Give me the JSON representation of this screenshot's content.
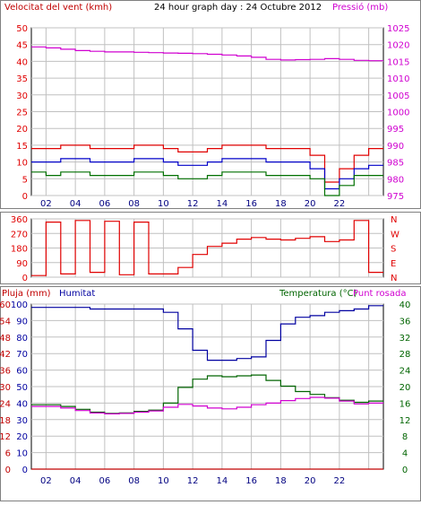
{
  "colors": {
    "wind_gust": "#e00000",
    "wind_avg": "#0000c8",
    "wind_min": "#007000",
    "pressure": "#d000d0",
    "direction": "#e00000",
    "humidity": "#0000a0",
    "temperature": "#006400",
    "dewpoint": "#d000d0",
    "rain": "#c00000",
    "grid": "#c0c0c0",
    "frame": "#808080"
  },
  "header": {
    "wind_label": "Velocitat del vent (kmh)",
    "title": "24 hour graph day : 24 Octubre 2012",
    "pressure_label": "Pressió (mb)"
  },
  "bottom_header": {
    "rain_label": "Pluja (mm)",
    "humidity_label": "Humitat",
    "temp_label": "Temperatura (°C)",
    "dew_label": "Punt rosada"
  },
  "chart_data": [
    {
      "type": "line",
      "name": "wind_pressure",
      "x": [
        0,
        1,
        2,
        3,
        4,
        5,
        6,
        7,
        8,
        9,
        10,
        11,
        12,
        13,
        14,
        15,
        16,
        17,
        18,
        19,
        20,
        21,
        22,
        23
      ],
      "x_ticks": [
        "02",
        "04",
        "06",
        "08",
        "10",
        "12",
        "14",
        "16",
        "18",
        "20",
        "22"
      ],
      "ylim_left": [
        0,
        50
      ],
      "yticks_left": [
        0,
        5,
        10,
        15,
        20,
        25,
        30,
        35,
        40,
        45,
        50
      ],
      "ylim_right": [
        975,
        1025
      ],
      "yticks_right": [
        975,
        980,
        985,
        990,
        995,
        1000,
        1005,
        1010,
        1015,
        1020,
        1025
      ],
      "series": [
        {
          "key": "wind_gust",
          "axis": "left",
          "values": [
            14,
            14,
            15,
            15,
            14,
            14,
            14,
            15,
            15,
            14,
            13,
            13,
            14,
            15,
            15,
            15,
            14,
            14,
            14,
            12,
            4,
            8,
            12,
            14
          ]
        },
        {
          "key": "wind_avg",
          "axis": "left",
          "values": [
            10,
            10,
            11,
            11,
            10,
            10,
            10,
            11,
            11,
            10,
            9,
            9,
            10,
            11,
            11,
            11,
            10,
            10,
            10,
            8,
            2,
            5,
            8,
            9
          ]
        },
        {
          "key": "wind_min",
          "axis": "left",
          "values": [
            7,
            6,
            7,
            7,
            6,
            6,
            6,
            7,
            7,
            6,
            5,
            5,
            6,
            7,
            7,
            7,
            6,
            6,
            6,
            5,
            0,
            3,
            6,
            6
          ]
        },
        {
          "key": "pressure",
          "axis": "right",
          "values": [
            1019.3,
            1019,
            1018.6,
            1018.2,
            1018,
            1017.8,
            1017.8,
            1017.7,
            1017.6,
            1017.5,
            1017.4,
            1017.3,
            1017.1,
            1016.9,
            1016.6,
            1016.2,
            1015.6,
            1015.4,
            1015.5,
            1015.6,
            1015.8,
            1015.6,
            1015.3,
            1015.2
          ]
        }
      ]
    },
    {
      "type": "line",
      "name": "wind_direction",
      "x": [
        0,
        1,
        2,
        3,
        4,
        5,
        6,
        7,
        8,
        9,
        10,
        11,
        12,
        13,
        14,
        15,
        16,
        17,
        18,
        19,
        20,
        21,
        22,
        23
      ],
      "ylim_left": [
        0,
        360
      ],
      "yticks_left": [
        0,
        90,
        180,
        270,
        360
      ],
      "right_labels": [
        "N",
        "E",
        "S",
        "W",
        "N"
      ],
      "series": [
        {
          "key": "direction",
          "axis": "left",
          "values": [
            10,
            340,
            20,
            350,
            30,
            345,
            15,
            340,
            20,
            20,
            60,
            140,
            190,
            210,
            235,
            245,
            235,
            230,
            240,
            250,
            220,
            230,
            350,
            30
          ]
        }
      ]
    },
    {
      "type": "line",
      "name": "temp_humidity",
      "x": [
        0,
        1,
        2,
        3,
        4,
        5,
        6,
        7,
        8,
        9,
        10,
        11,
        12,
        13,
        14,
        15,
        16,
        17,
        18,
        19,
        20,
        21,
        22,
        23
      ],
      "ylim_left": [
        0,
        40
      ],
      "yticks_left_rain": [
        0,
        6,
        12,
        18,
        24,
        30,
        36,
        42,
        48,
        54,
        60
      ],
      "yticks_left_hum": [
        0,
        10,
        20,
        30,
        40,
        50,
        60,
        70,
        80,
        90,
        100
      ],
      "yticks_right": [
        0,
        4,
        8,
        12,
        16,
        20,
        24,
        28,
        32,
        36,
        40
      ],
      "series": [
        {
          "key": "humidity",
          "axis": "hum",
          "values": [
            98,
            98,
            98,
            98,
            97,
            97,
            97,
            97,
            97,
            95,
            85,
            72,
            66,
            66,
            67,
            68,
            78,
            88,
            92,
            93,
            95,
            96,
            97,
            99
          ]
        },
        {
          "key": "temperature",
          "axis": "temp",
          "values": [
            15.6,
            15.6,
            15.2,
            14.5,
            13.8,
            13.5,
            13.6,
            14,
            14.3,
            16,
            19.8,
            21.8,
            22.6,
            22.4,
            22.6,
            22.8,
            21.5,
            20.1,
            18.8,
            18.1,
            17.3,
            16.7,
            16.2,
            16.5
          ]
        },
        {
          "key": "dewpoint",
          "axis": "temp",
          "values": [
            15.2,
            15.2,
            14.8,
            14.2,
            13.6,
            13.4,
            13.5,
            13.8,
            14.1,
            15,
            15.7,
            15.3,
            14.8,
            14.6,
            15,
            15.6,
            16,
            16.6,
            17.1,
            17.4,
            17.2,
            16.5,
            15.8,
            16
          ]
        },
        {
          "key": "rain",
          "axis": "rain",
          "values": [
            0,
            0,
            0,
            0,
            0,
            0,
            0,
            0,
            0,
            0,
            0,
            0,
            0,
            0,
            0,
            0,
            0,
            0,
            0,
            0,
            0,
            0,
            0,
            0
          ]
        }
      ]
    }
  ]
}
